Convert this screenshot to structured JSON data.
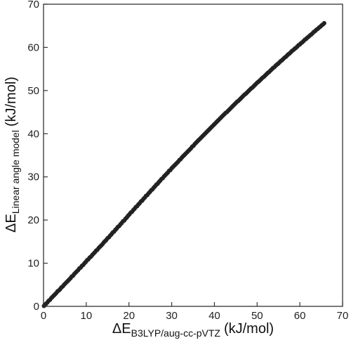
{
  "chart_data": {
    "type": "scatter",
    "title": "",
    "xlabel": {
      "base": "ΔE",
      "sub": "B3LYP/aug-cc-pVTZ",
      "unit": "(kJ/mol)"
    },
    "ylabel": {
      "base": "ΔE",
      "sub": "Linear angle model",
      "unit": "(kJ/mol)"
    },
    "xlim": [
      0,
      70
    ],
    "ylim": [
      0,
      70
    ],
    "xticks": [
      0,
      10,
      20,
      30,
      40,
      50,
      60,
      70
    ],
    "yticks": [
      0,
      10,
      20,
      30,
      40,
      50,
      60,
      70
    ],
    "grid": false,
    "marker_color": "#222222",
    "series": [
      {
        "points": [
          [
            0.1,
            0.1
          ],
          [
            0.3,
            0.4
          ],
          [
            0.6,
            0.6
          ],
          [
            0.9,
            0.9
          ],
          [
            1.2,
            1.3
          ],
          [
            1.5,
            1.5
          ],
          [
            1.8,
            1.9
          ],
          [
            2.1,
            2.2
          ],
          [
            2.4,
            2.5
          ],
          [
            2.7,
            2.8
          ],
          [
            3.0,
            3.1
          ],
          [
            3.3,
            3.5
          ],
          [
            3.6,
            3.7
          ],
          [
            3.9,
            4.0
          ],
          [
            4.2,
            4.4
          ],
          [
            4.5,
            4.6
          ],
          [
            4.8,
            5.0
          ],
          [
            5.1,
            5.3
          ],
          [
            5.4,
            5.6
          ],
          [
            5.7,
            5.9
          ],
          [
            6.0,
            6.2
          ],
          [
            6.3,
            6.5
          ],
          [
            6.6,
            6.9
          ],
          [
            6.9,
            7.1
          ],
          [
            7.2,
            7.5
          ],
          [
            7.5,
            7.8
          ],
          [
            7.8,
            8.1
          ],
          [
            8.1,
            8.4
          ],
          [
            8.4,
            8.8
          ],
          [
            8.7,
            9.0
          ],
          [
            9.0,
            9.4
          ],
          [
            9.3,
            9.6
          ],
          [
            9.6,
            10.0
          ],
          [
            9.9,
            10.3
          ],
          [
            10.2,
            10.7
          ],
          [
            10.5,
            10.9
          ],
          [
            10.8,
            11.3
          ],
          [
            11.1,
            11.5
          ],
          [
            11.4,
            11.9
          ],
          [
            11.7,
            12.2
          ],
          [
            12.0,
            12.5
          ],
          [
            12.3,
            12.9
          ],
          [
            12.6,
            13.1
          ],
          [
            12.9,
            13.5
          ],
          [
            13.2,
            13.8
          ],
          [
            13.5,
            14.1
          ],
          [
            13.8,
            14.4
          ],
          [
            14.1,
            14.8
          ],
          [
            14.4,
            15.1
          ],
          [
            14.7,
            15.4
          ],
          [
            15.0,
            15.8
          ],
          [
            15.3,
            16.0
          ],
          [
            15.6,
            16.4
          ],
          [
            15.9,
            16.7
          ],
          [
            16.2,
            17.1
          ],
          [
            16.5,
            17.3
          ],
          [
            16.8,
            17.7
          ],
          [
            17.1,
            18.0
          ],
          [
            17.4,
            18.4
          ],
          [
            17.7,
            18.6
          ],
          [
            18.0,
            19.0
          ],
          [
            18.3,
            19.3
          ],
          [
            18.6,
            19.7
          ],
          [
            18.9,
            19.9
          ],
          [
            19.2,
            20.3
          ],
          [
            19.5,
            20.6
          ],
          [
            19.8,
            21.0
          ],
          [
            20.1,
            21.3
          ],
          [
            20.4,
            21.7
          ],
          [
            20.7,
            21.9
          ],
          [
            21.0,
            22.3
          ],
          [
            21.3,
            22.6
          ],
          [
            21.6,
            23.0
          ],
          [
            21.9,
            23.2
          ],
          [
            22.2,
            23.6
          ],
          [
            22.5,
            23.9
          ],
          [
            22.8,
            24.3
          ],
          [
            23.1,
            24.5
          ],
          [
            23.4,
            24.9
          ],
          [
            23.7,
            25.2
          ],
          [
            24.0,
            25.6
          ],
          [
            24.3,
            25.8
          ],
          [
            24.6,
            26.2
          ],
          [
            24.9,
            26.5
          ],
          [
            25.2,
            26.9
          ],
          [
            25.5,
            27.1
          ],
          [
            25.8,
            27.5
          ],
          [
            26.1,
            27.8
          ],
          [
            26.4,
            28.2
          ],
          [
            26.7,
            28.4
          ],
          [
            27.0,
            28.8
          ],
          [
            27.3,
            29.1
          ],
          [
            27.6,
            29.5
          ],
          [
            27.9,
            29.7
          ],
          [
            28.2,
            30.1
          ],
          [
            28.5,
            30.4
          ],
          [
            28.8,
            30.7
          ],
          [
            29.1,
            31.0
          ],
          [
            29.4,
            31.4
          ],
          [
            29.7,
            31.6
          ],
          [
            30.0,
            32.0
          ],
          [
            30.3,
            32.3
          ],
          [
            30.6,
            32.6
          ],
          [
            30.9,
            32.9
          ],
          [
            31.2,
            33.2
          ],
          [
            31.5,
            33.5
          ],
          [
            31.8,
            33.9
          ],
          [
            32.1,
            34.1
          ],
          [
            32.4,
            34.5
          ],
          [
            32.7,
            34.8
          ],
          [
            33.0,
            35.1
          ],
          [
            33.3,
            35.4
          ],
          [
            33.6,
            35.7
          ],
          [
            33.9,
            36.0
          ],
          [
            34.2,
            36.3
          ],
          [
            34.5,
            36.6
          ],
          [
            34.8,
            37.0
          ],
          [
            35.1,
            37.2
          ],
          [
            35.4,
            37.6
          ],
          [
            35.7,
            37.9
          ],
          [
            36.0,
            38.2
          ],
          [
            36.3,
            38.5
          ],
          [
            36.6,
            38.8
          ],
          [
            36.9,
            39.1
          ],
          [
            37.2,
            39.4
          ],
          [
            37.5,
            39.7
          ],
          [
            37.8,
            40.0
          ],
          [
            38.1,
            40.3
          ],
          [
            38.4,
            40.6
          ],
          [
            38.7,
            40.9
          ],
          [
            39.0,
            41.2
          ],
          [
            39.3,
            41.5
          ],
          [
            39.6,
            41.8
          ],
          [
            39.9,
            42.1
          ],
          [
            40.2,
            42.4
          ],
          [
            40.5,
            42.7
          ],
          [
            40.8,
            43.0
          ],
          [
            41.1,
            43.3
          ],
          [
            41.4,
            43.6
          ],
          [
            41.7,
            43.9
          ],
          [
            42.0,
            44.2
          ],
          [
            42.3,
            44.5
          ],
          [
            42.6,
            44.8
          ],
          [
            42.9,
            45.0
          ],
          [
            43.2,
            45.3
          ],
          [
            43.5,
            45.6
          ],
          [
            43.8,
            45.9
          ],
          [
            44.1,
            46.2
          ],
          [
            44.4,
            46.5
          ],
          [
            44.7,
            46.8
          ],
          [
            45.0,
            47.1
          ],
          [
            45.3,
            47.4
          ],
          [
            45.6,
            47.6
          ],
          [
            45.9,
            47.9
          ],
          [
            46.2,
            48.2
          ],
          [
            46.5,
            48.5
          ],
          [
            46.8,
            48.8
          ],
          [
            47.1,
            49.1
          ],
          [
            47.4,
            49.3
          ],
          [
            47.7,
            49.6
          ],
          [
            48.0,
            49.9
          ],
          [
            48.3,
            50.2
          ],
          [
            48.6,
            50.5
          ],
          [
            48.9,
            50.7
          ],
          [
            49.2,
            51.0
          ],
          [
            49.5,
            51.3
          ],
          [
            49.8,
            51.6
          ],
          [
            50.1,
            51.9
          ],
          [
            50.4,
            52.1
          ],
          [
            50.7,
            52.4
          ],
          [
            51.0,
            52.7
          ],
          [
            51.3,
            53.0
          ],
          [
            51.6,
            53.2
          ],
          [
            51.9,
            53.5
          ],
          [
            52.2,
            53.8
          ],
          [
            52.5,
            54.1
          ],
          [
            52.8,
            54.3
          ],
          [
            53.1,
            54.6
          ],
          [
            53.4,
            54.9
          ],
          [
            53.7,
            55.2
          ],
          [
            54.0,
            55.4
          ],
          [
            54.3,
            55.7
          ],
          [
            54.6,
            56.0
          ],
          [
            54.9,
            56.2
          ],
          [
            55.2,
            56.5
          ],
          [
            55.5,
            56.8
          ],
          [
            55.8,
            57.0
          ],
          [
            56.1,
            57.3
          ],
          [
            56.4,
            57.6
          ],
          [
            56.7,
            57.8
          ],
          [
            57.0,
            58.1
          ],
          [
            57.3,
            58.4
          ],
          [
            57.6,
            58.6
          ],
          [
            57.9,
            58.9
          ],
          [
            58.2,
            59.2
          ],
          [
            58.5,
            59.4
          ],
          [
            58.8,
            59.7
          ],
          [
            59.1,
            59.9
          ],
          [
            59.4,
            60.2
          ],
          [
            59.7,
            60.5
          ],
          [
            60.0,
            60.7
          ],
          [
            60.3,
            61.0
          ],
          [
            60.6,
            61.2
          ],
          [
            60.9,
            61.5
          ],
          [
            61.2,
            61.8
          ],
          [
            61.5,
            62.0
          ],
          [
            61.8,
            62.3
          ],
          [
            62.1,
            62.5
          ],
          [
            62.4,
            62.8
          ],
          [
            62.7,
            63.0
          ],
          [
            63.0,
            63.3
          ],
          [
            63.3,
            63.6
          ],
          [
            63.6,
            63.8
          ],
          [
            63.9,
            64.1
          ],
          [
            64.2,
            64.3
          ],
          [
            64.5,
            64.6
          ],
          [
            64.8,
            64.8
          ],
          [
            65.1,
            65.1
          ],
          [
            65.4,
            65.3
          ],
          [
            65.7,
            65.6
          ]
        ]
      }
    ]
  }
}
